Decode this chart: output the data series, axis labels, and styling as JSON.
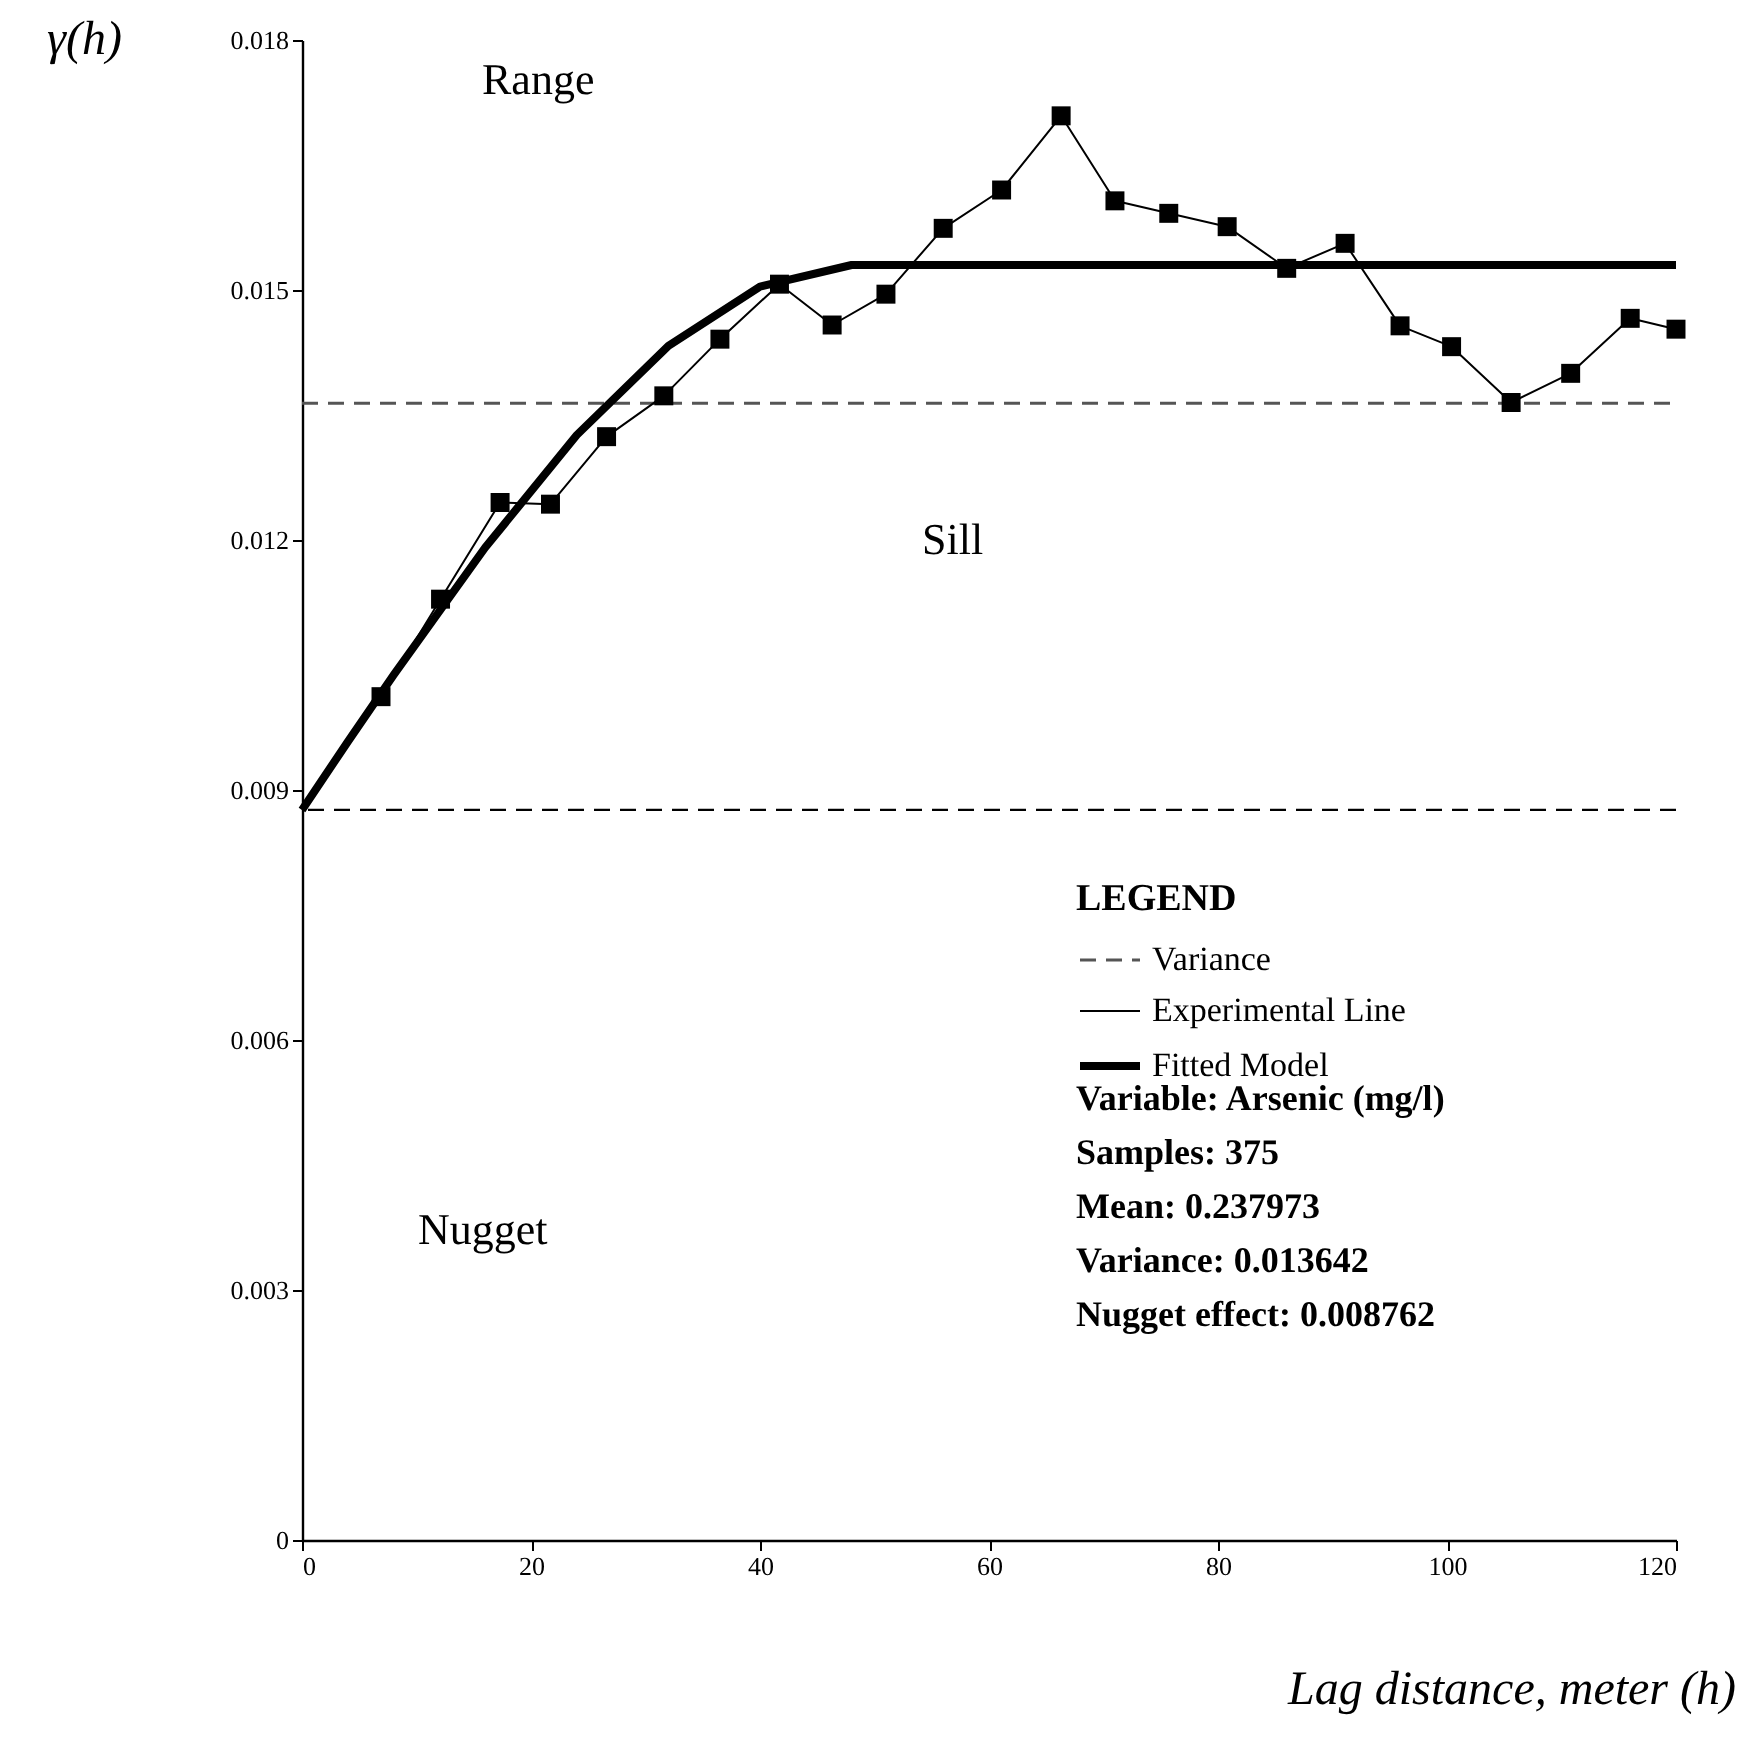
{
  "chart_data": {
    "type": "line",
    "xlabel": "Lag distance, meter (h)",
    "ylabel": "γ(h)",
    "legend_title": "LEGEND",
    "xlim": [
      0,
      120
    ],
    "xticks": [
      0,
      20,
      40,
      60,
      80,
      100,
      120
    ],
    "ylim": [
      0,
      0.018
    ],
    "yticks": [
      0,
      0.003,
      0.006,
      0.009,
      0.012,
      0.015,
      0.018
    ],
    "grid": false,
    "legend": "bottom right",
    "series": [
      {
        "name": "Variance",
        "color": "#555555",
        "line_style": "dashed",
        "marker": "none",
        "x": [
          0,
          120
        ],
        "values": [
          0.01364,
          0.01364
        ]
      },
      {
        "name": "Experimental Line",
        "color": "#000000",
        "line_style": "solid",
        "marker": "square",
        "x": [
          6.9,
          12.1,
          17.3,
          21.7,
          26.6,
          31.6,
          36.5,
          41.7,
          46.3,
          51.0,
          56.0,
          61.1,
          66.3,
          71.0,
          75.7,
          80.8,
          86.0,
          91.1,
          95.9,
          100.4,
          105.6,
          110.8,
          116.0,
          120.0
        ],
        "values": [
          0.01012,
          0.01129,
          0.01245,
          0.01243,
          0.01324,
          0.01373,
          0.01441,
          0.01507,
          0.01458,
          0.01495,
          0.01574,
          0.0162,
          0.01709,
          0.01607,
          0.01592,
          0.01576,
          0.01526,
          0.01556,
          0.01457,
          0.01432,
          0.01365,
          0.014,
          0.01466,
          0.01453
        ]
      },
      {
        "name": "Fitted Model",
        "color": "#000000",
        "line_style": "solid",
        "marker": "none",
        "x": [
          0,
          4,
          8,
          16,
          24,
          32,
          40,
          48,
          120
        ],
        "values": [
          0.00876,
          0.00958,
          0.01038,
          0.01191,
          0.01326,
          0.01433,
          0.01504,
          0.0153,
          0.0153
        ]
      }
    ],
    "ref_lines": [
      {
        "axis": "y",
        "value": 0.008762,
        "line_style": "dashed",
        "color": "#000000",
        "label": null
      }
    ],
    "annotations": [
      "Range",
      "Sill",
      "Nugget",
      "Variable: Arsenic (mg/l)",
      "Samples: 375",
      "Mean: 0.237973",
      "Variance: 0.013642",
      "Nugget effect: 0.008762"
    ]
  }
}
